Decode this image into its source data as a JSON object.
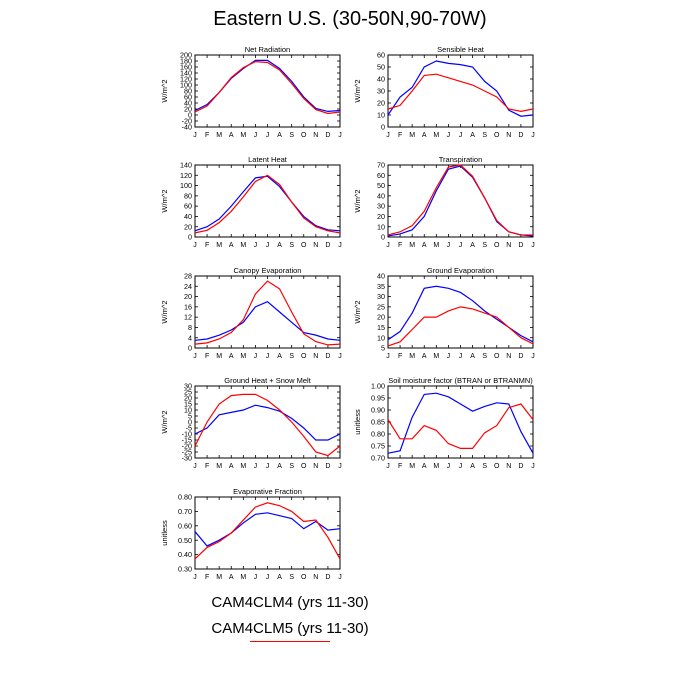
{
  "page": {
    "title": "Eastern U.S. (30-50N,90-70W)"
  },
  "months": [
    "J",
    "F",
    "M",
    "A",
    "M",
    "J",
    "J",
    "A",
    "S",
    "O",
    "N",
    "D",
    "J"
  ],
  "legend": [
    {
      "label": "CAM4CLM4 (yrs 11-30)",
      "color": "#0000ff"
    },
    {
      "label": "CAM4CLM5 (yrs 11-30)",
      "color": "#ff0000"
    }
  ],
  "chart_data": [
    {
      "type": "line",
      "title": "Net Radiation",
      "ylabel": "W/m^2",
      "ylim": [
        -40,
        200
      ],
      "yticks": [
        -40,
        -20,
        0,
        20,
        40,
        60,
        80,
        100,
        120,
        140,
        160,
        180,
        200
      ],
      "categories": [
        "J",
        "F",
        "M",
        "A",
        "M",
        "J",
        "J",
        "A",
        "S",
        "O",
        "N",
        "D",
        "J"
      ],
      "series": [
        {
          "name": "CAM4CLM4 (yrs 11-30)",
          "color": "#0000ff",
          "values": [
            15,
            35,
            75,
            122,
            155,
            182,
            182,
            155,
            112,
            60,
            22,
            12,
            15
          ]
        },
        {
          "name": "CAM4CLM5 (yrs 11-30)",
          "color": "#ff0000",
          "values": [
            10,
            30,
            75,
            125,
            158,
            178,
            175,
            150,
            105,
            55,
            18,
            5,
            10
          ]
        }
      ]
    },
    {
      "type": "line",
      "title": "Sensible Heat",
      "ylabel": "W/m^2",
      "ylim": [
        0,
        60
      ],
      "yticks": [
        0,
        10,
        20,
        30,
        40,
        50,
        60
      ],
      "categories": [
        "J",
        "F",
        "M",
        "A",
        "M",
        "J",
        "J",
        "A",
        "S",
        "O",
        "N",
        "D",
        "J"
      ],
      "series": [
        {
          "name": "CAM4CLM4 (yrs 11-30)",
          "color": "#0000ff",
          "values": [
            10,
            25,
            33,
            50,
            55,
            53,
            52,
            50,
            38,
            30,
            14,
            9,
            10
          ]
        },
        {
          "name": "CAM4CLM5 (yrs 11-30)",
          "color": "#ff0000",
          "values": [
            15,
            18,
            30,
            43,
            44,
            41,
            38,
            35,
            30,
            25,
            15,
            13,
            15
          ]
        }
      ]
    },
    {
      "type": "line",
      "title": "Latent Heat",
      "ylabel": "W/m^2",
      "ylim": [
        0,
        140
      ],
      "yticks": [
        0,
        20,
        40,
        60,
        80,
        100,
        120,
        140
      ],
      "categories": [
        "J",
        "F",
        "M",
        "A",
        "M",
        "J",
        "J",
        "A",
        "S",
        "O",
        "N",
        "D",
        "J"
      ],
      "series": [
        {
          "name": "CAM4CLM4 (yrs 11-30)",
          "color": "#0000ff",
          "values": [
            12,
            20,
            35,
            60,
            88,
            115,
            118,
            98,
            68,
            40,
            22,
            14,
            12
          ]
        },
        {
          "name": "CAM4CLM5 (yrs 11-30)",
          "color": "#ff0000",
          "values": [
            8,
            13,
            28,
            50,
            78,
            108,
            120,
            102,
            68,
            37,
            20,
            12,
            8
          ]
        }
      ]
    },
    {
      "type": "line",
      "title": "Transpiration",
      "ylabel": "W/m^2",
      "ylim": [
        0,
        70
      ],
      "yticks": [
        0,
        10,
        20,
        30,
        40,
        50,
        60,
        70
      ],
      "categories": [
        "J",
        "F",
        "M",
        "A",
        "M",
        "J",
        "J",
        "A",
        "S",
        "O",
        "N",
        "D",
        "J"
      ],
      "series": [
        {
          "name": "CAM4CLM4 (yrs 11-30)",
          "color": "#0000ff",
          "values": [
            1,
            3,
            7,
            20,
            45,
            66,
            69,
            58,
            38,
            15,
            5,
            2,
            1
          ]
        },
        {
          "name": "CAM4CLM5 (yrs 11-30)",
          "color": "#ff0000",
          "values": [
            2,
            5,
            11,
            25,
            48,
            68,
            70,
            59,
            38,
            16,
            5,
            2,
            2
          ]
        }
      ]
    },
    {
      "type": "line",
      "title": "Canopy Evaporation",
      "ylabel": "W/m^2",
      "ylim": [
        0,
        28
      ],
      "yticks": [
        0,
        4,
        8,
        12,
        16,
        20,
        24,
        28
      ],
      "categories": [
        "J",
        "F",
        "M",
        "A",
        "M",
        "J",
        "J",
        "A",
        "S",
        "O",
        "N",
        "D",
        "J"
      ],
      "series": [
        {
          "name": "CAM4CLM4 (yrs 11-30)",
          "color": "#0000ff",
          "values": [
            3,
            3.5,
            5,
            7,
            10,
            16,
            18,
            14,
            10,
            6,
            5,
            3.5,
            3
          ]
        },
        {
          "name": "CAM4CLM5 (yrs 11-30)",
          "color": "#ff0000",
          "values": [
            1.5,
            2,
            3.5,
            6,
            11,
            21,
            26,
            23,
            14,
            5.5,
            2.5,
            1.2,
            1.5
          ]
        }
      ]
    },
    {
      "type": "line",
      "title": "Ground Evaporation",
      "ylabel": "W/m^2",
      "ylim": [
        5,
        40
      ],
      "yticks": [
        5,
        10,
        15,
        20,
        25,
        30,
        35,
        40
      ],
      "categories": [
        "J",
        "F",
        "M",
        "A",
        "M",
        "J",
        "J",
        "A",
        "S",
        "O",
        "N",
        "D",
        "J"
      ],
      "series": [
        {
          "name": "CAM4CLM4 (yrs 11-30)",
          "color": "#0000ff",
          "values": [
            9,
            13,
            22,
            34,
            35,
            34,
            32,
            28,
            23,
            19,
            15,
            11,
            8
          ]
        },
        {
          "name": "CAM4CLM5 (yrs 11-30)",
          "color": "#ff0000",
          "values": [
            6,
            8,
            14,
            20,
            20,
            23,
            25,
            24,
            22,
            20,
            15,
            10,
            7
          ]
        }
      ]
    },
    {
      "type": "line",
      "title": "Ground Heat + Snow Melt",
      "ylabel": "W/m^2",
      "ylim": [
        -30,
        30
      ],
      "yticks": [
        -30,
        -25,
        -20,
        -15,
        -10,
        -5,
        0,
        5,
        10,
        15,
        20,
        25,
        30
      ],
      "categories": [
        "J",
        "F",
        "M",
        "A",
        "M",
        "J",
        "J",
        "A",
        "S",
        "O",
        "N",
        "D",
        "J"
      ],
      "series": [
        {
          "name": "CAM4CLM4 (yrs 11-30)",
          "color": "#0000ff",
          "values": [
            -10,
            -5,
            6,
            8,
            10,
            14,
            12,
            9,
            3,
            -5,
            -15,
            -15,
            -10
          ]
        },
        {
          "name": "CAM4CLM5 (yrs 11-30)",
          "color": "#ff0000",
          "values": [
            -20,
            0,
            15,
            22,
            23,
            23,
            18,
            10,
            0,
            -12,
            -25,
            -28,
            -20
          ]
        }
      ]
    },
    {
      "type": "line",
      "title": "Soil moisture factor (BTRAN or BTRANMN)",
      "ylabel": "unitless",
      "ylim": [
        0.7,
        1.0
      ],
      "yticks": [
        0.7,
        0.75,
        0.8,
        0.85,
        0.9,
        0.95,
        1.0
      ],
      "categories": [
        "J",
        "F",
        "M",
        "A",
        "M",
        "J",
        "J",
        "A",
        "S",
        "O",
        "N",
        "D",
        "J"
      ],
      "series": [
        {
          "name": "CAM4CLM4 (yrs 11-30)",
          "color": "#0000ff",
          "values": [
            0.72,
            0.73,
            0.87,
            0.965,
            0.97,
            0.955,
            0.925,
            0.895,
            0.915,
            0.93,
            0.925,
            0.81,
            0.72
          ]
        },
        {
          "name": "CAM4CLM5 (yrs 11-30)",
          "color": "#ff0000",
          "values": [
            0.86,
            0.78,
            0.78,
            0.835,
            0.815,
            0.76,
            0.74,
            0.74,
            0.805,
            0.835,
            0.91,
            0.925,
            0.86
          ]
        }
      ]
    },
    {
      "type": "line",
      "title": "Evaporative Fraction",
      "ylabel": "unitless",
      "ylim": [
        0.3,
        0.8
      ],
      "yticks": [
        0.3,
        0.4,
        0.5,
        0.6,
        0.7,
        0.8
      ],
      "categories": [
        "J",
        "F",
        "M",
        "A",
        "M",
        "J",
        "J",
        "A",
        "S",
        "O",
        "N",
        "D",
        "J"
      ],
      "series": [
        {
          "name": "CAM4CLM4 (yrs 11-30)",
          "color": "#0000ff",
          "values": [
            0.56,
            0.46,
            0.5,
            0.55,
            0.62,
            0.68,
            0.69,
            0.67,
            0.65,
            0.58,
            0.63,
            0.57,
            0.58
          ]
        },
        {
          "name": "CAM4CLM5 (yrs 11-30)",
          "color": "#ff0000",
          "values": [
            0.37,
            0.45,
            0.49,
            0.55,
            0.64,
            0.73,
            0.76,
            0.74,
            0.7,
            0.63,
            0.64,
            0.52,
            0.37
          ]
        }
      ]
    }
  ]
}
